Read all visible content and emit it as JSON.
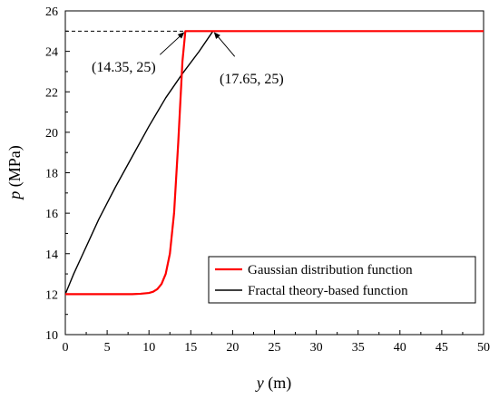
{
  "chart_data": {
    "type": "line",
    "xlabel": {
      "var": "y",
      "unit": " (m)"
    },
    "ylabel": {
      "var": "p",
      "unit": " (MPa)"
    },
    "xlim": [
      0,
      50
    ],
    "ylim": [
      10,
      26
    ],
    "xticks": [
      0,
      5,
      10,
      15,
      20,
      25,
      30,
      35,
      40,
      45,
      50
    ],
    "yticks": [
      10,
      12,
      14,
      16,
      18,
      20,
      22,
      24,
      26
    ],
    "grid": false,
    "legend_position": "bottom-right",
    "series": [
      {
        "name": "Gaussian distribution function",
        "color": "#ff0000",
        "points": [
          [
            0,
            12
          ],
          [
            8,
            12
          ],
          [
            9,
            12.02
          ],
          [
            10,
            12.06
          ],
          [
            10.5,
            12.12
          ],
          [
            11,
            12.25
          ],
          [
            11.5,
            12.5
          ],
          [
            12,
            13.0
          ],
          [
            12.5,
            14.0
          ],
          [
            13,
            16.0
          ],
          [
            13.5,
            19.5
          ],
          [
            14,
            23.5
          ],
          [
            14.35,
            25
          ],
          [
            50,
            25
          ]
        ]
      },
      {
        "name": "Fractal theory-based function",
        "color": "#000000",
        "points": [
          [
            0,
            12
          ],
          [
            0.5,
            12.5
          ],
          [
            1,
            13.0
          ],
          [
            2,
            13.9
          ],
          [
            3,
            14.8
          ],
          [
            4,
            15.7
          ],
          [
            5,
            16.5
          ],
          [
            6,
            17.3
          ],
          [
            8,
            18.8
          ],
          [
            10,
            20.3
          ],
          [
            12,
            21.7
          ],
          [
            14,
            22.9
          ],
          [
            16,
            24.0
          ],
          [
            17.65,
            25
          ],
          [
            50,
            25
          ]
        ]
      }
    ],
    "reference_line": {
      "y": 25,
      "x_from": 0,
      "x_to": 14.35,
      "style": "dashed"
    },
    "annotations": [
      {
        "text": "(14.35, 25)",
        "x": 14.35,
        "y": 25
      },
      {
        "text": "(17.65, 25)",
        "x": 17.65,
        "y": 25
      }
    ]
  }
}
